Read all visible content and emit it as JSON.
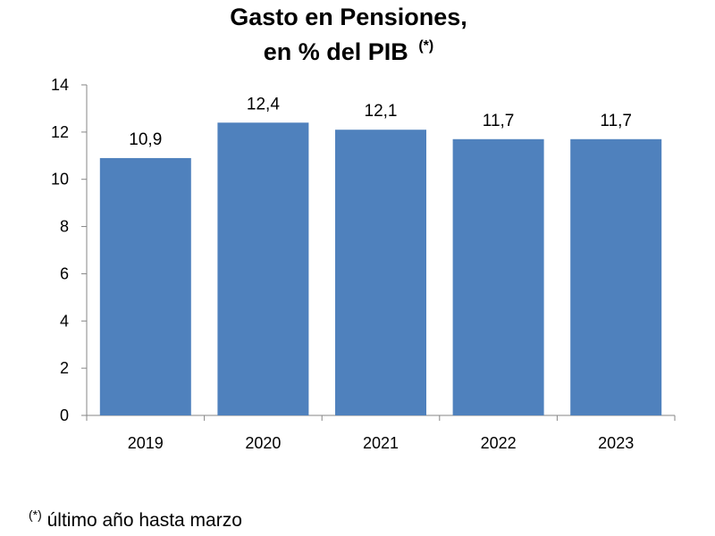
{
  "chart_data": {
    "type": "bar",
    "title_line1": "Gasto en Pensiones,",
    "title_line2": "en % del PIB",
    "title_marker": "(*)",
    "categories": [
      "2019",
      "2020",
      "2021",
      "2022",
      "2023"
    ],
    "values": [
      10.9,
      12.4,
      12.1,
      11.7,
      11.7
    ],
    "data_labels": [
      "10,9",
      "12,4",
      "12,1",
      "11,7",
      "11,7"
    ],
    "yticks": [
      "0",
      "2",
      "4",
      "6",
      "8",
      "10",
      "12",
      "14"
    ],
    "ylim": [
      0,
      14
    ],
    "xlabel": "",
    "ylabel": "",
    "grid": false,
    "bar_color": "#4f81bd"
  },
  "footnote": {
    "marker": "(*)",
    "text": " último año hasta marzo"
  }
}
